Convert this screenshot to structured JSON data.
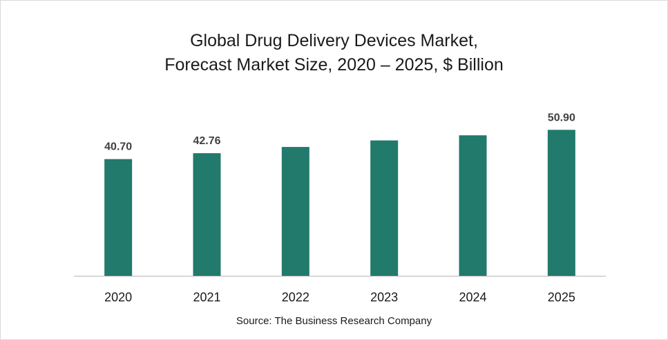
{
  "chart_data": {
    "type": "bar",
    "title": "Global Drug Delivery Devices Market,",
    "subtitle": "Forecast Market Size, 2020 – 2025, $ Billion",
    "categories": [
      "2020",
      "2021",
      "2022",
      "2023",
      "2024",
      "2025"
    ],
    "values": [
      40.7,
      42.76,
      44.93,
      47.21,
      48.99,
      50.9
    ],
    "data_labels": [
      "40.70",
      "42.76",
      "",
      "",
      "",
      "50.90"
    ],
    "xlabel": "",
    "ylabel": "",
    "ylim": [
      0,
      55
    ],
    "grid": false,
    "legend": "none",
    "bar_color": "#217a6b",
    "source": "Source: The Business Research Company"
  }
}
